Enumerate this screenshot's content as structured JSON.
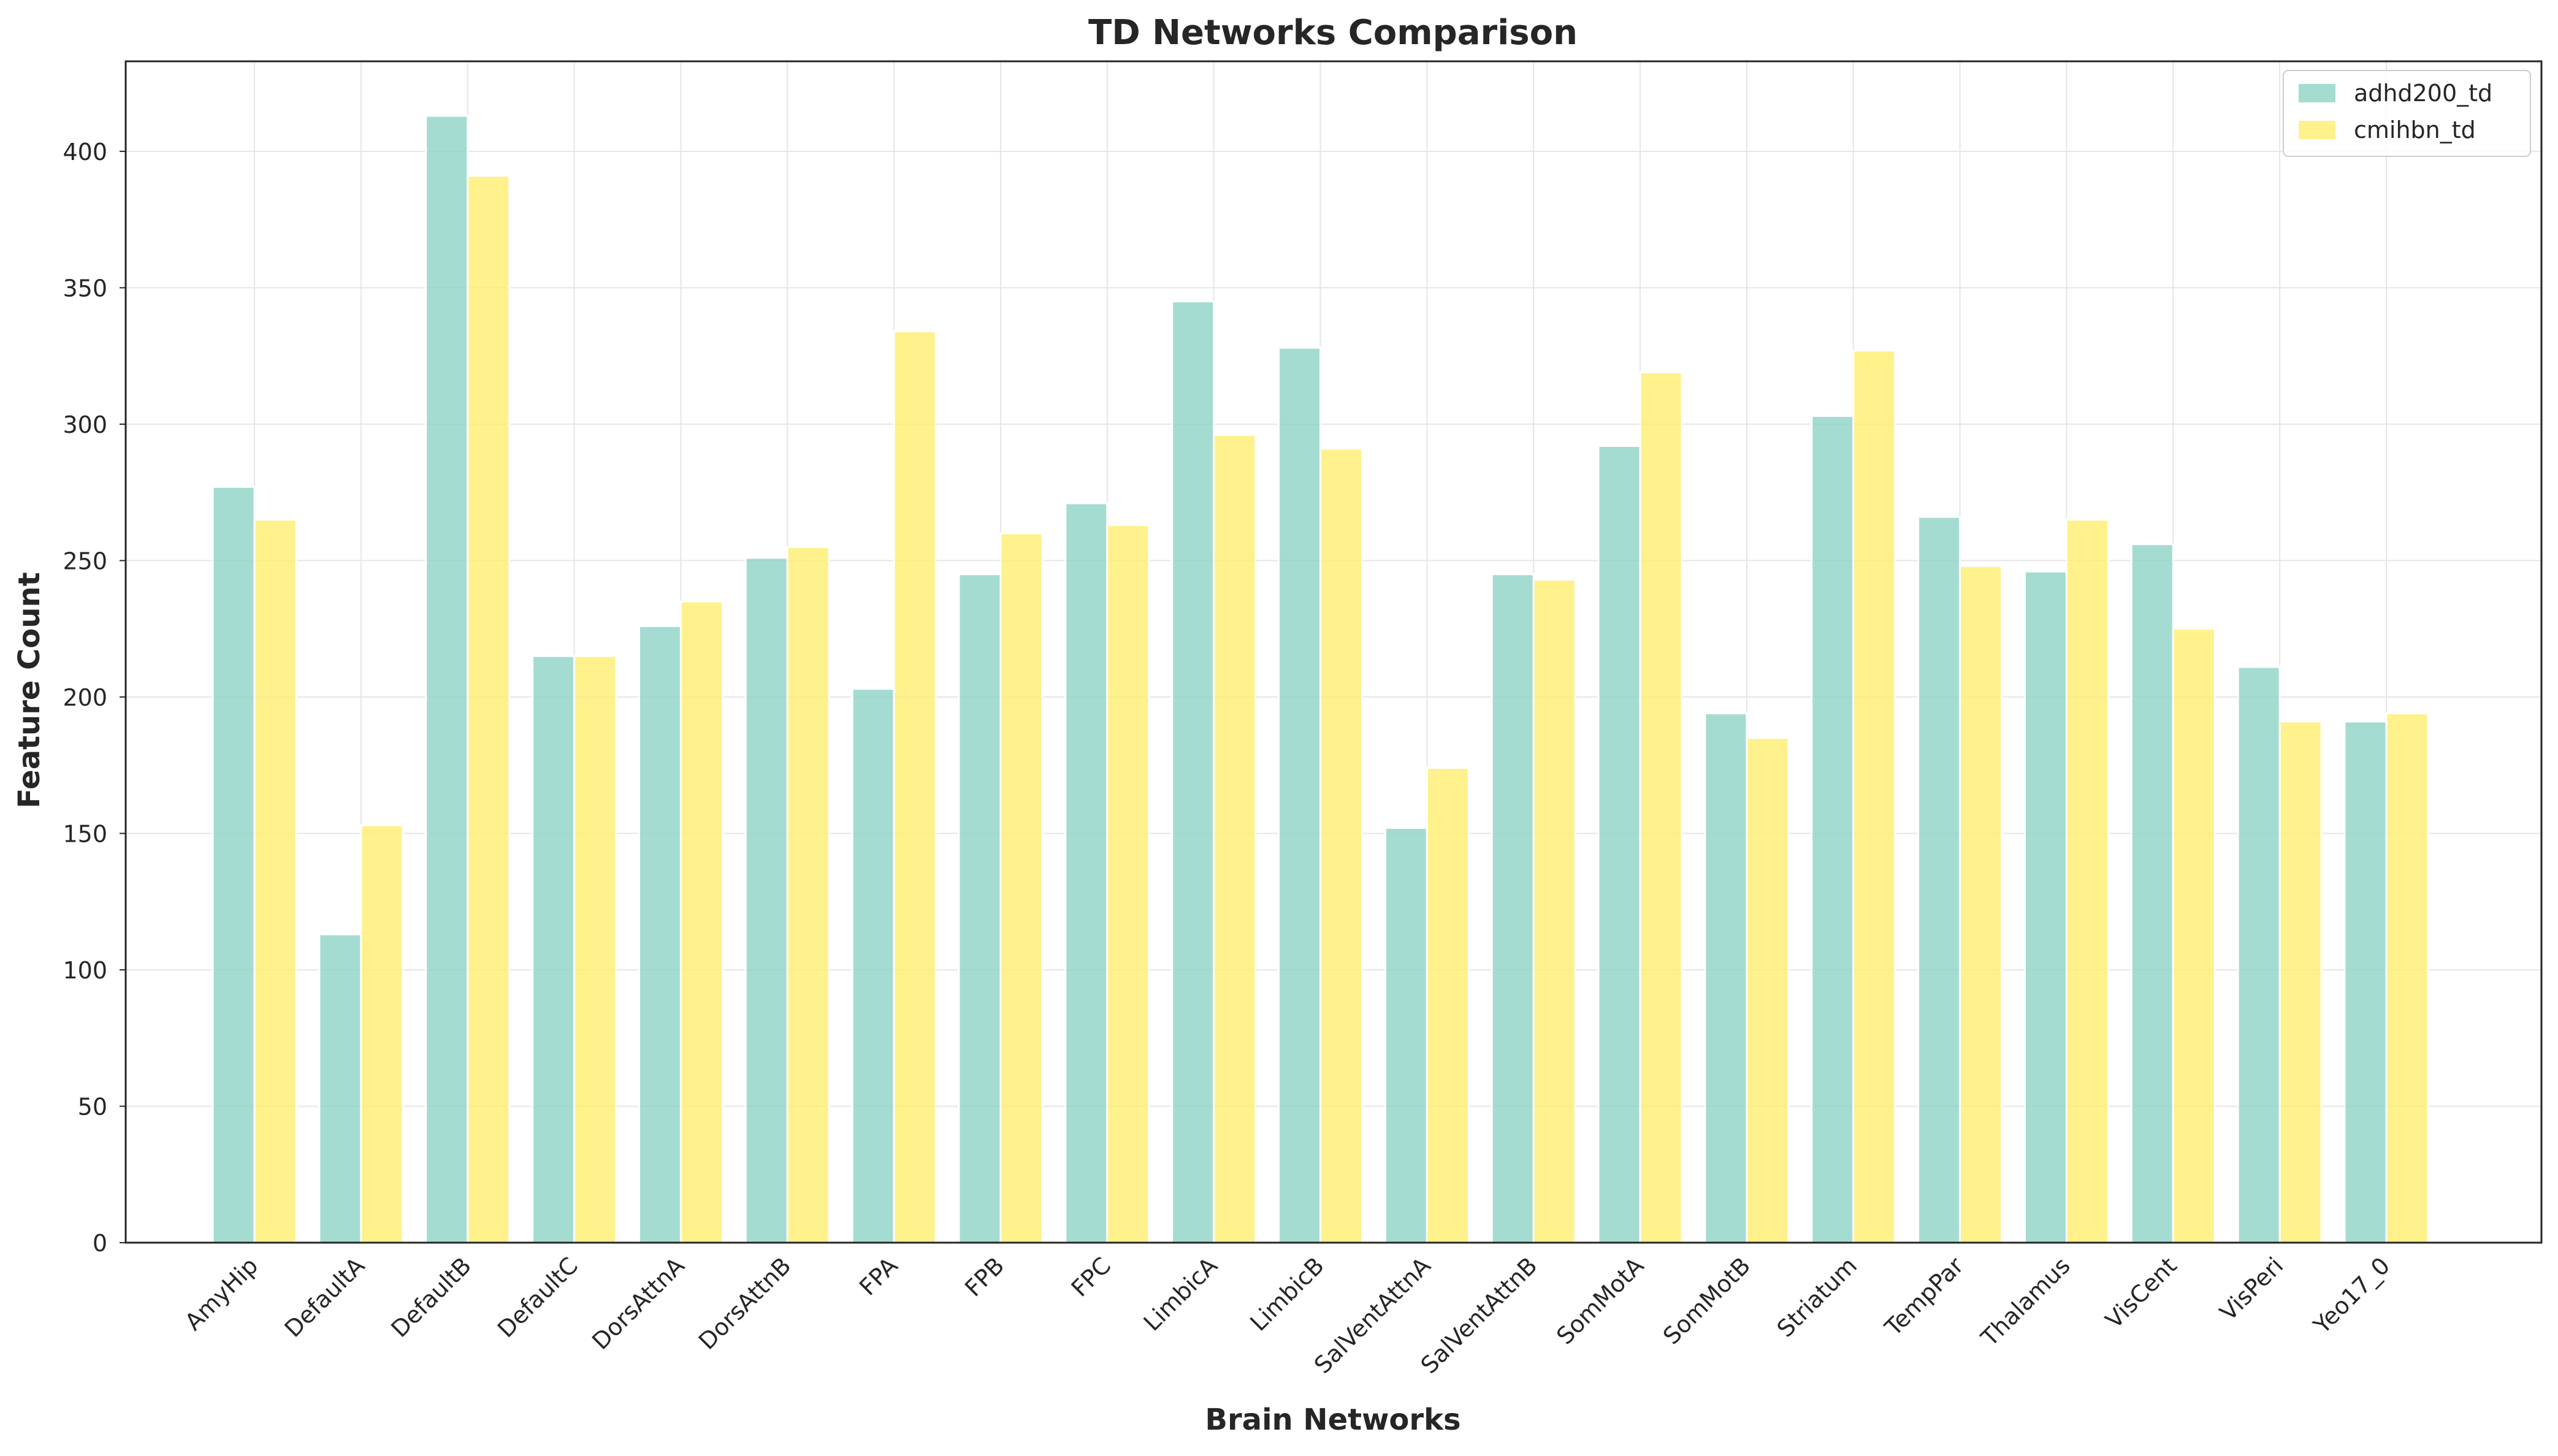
{
  "chart_data": {
    "type": "bar",
    "title": "TD Networks Comparison",
    "xlabel": "Brain Networks",
    "ylabel": "Feature Count",
    "ylim": [
      0,
      433
    ],
    "yticks": [
      0,
      50,
      100,
      150,
      200,
      250,
      300,
      350,
      400
    ],
    "grid": true,
    "legend_position": "top-right",
    "categories": [
      "AmyHip",
      "DefaultA",
      "DefaultB",
      "DefaultC",
      "DorsAttnA",
      "DorsAttnB",
      "FPA",
      "FPB",
      "FPC",
      "LimbicA",
      "LimbicB",
      "SalVentAttnA",
      "SalVentAttnB",
      "SomMotA",
      "SomMotB",
      "Striatum",
      "TempPar",
      "Thalamus",
      "VisCent",
      "VisPeri",
      "Yeo17_0"
    ],
    "series": [
      {
        "name": "adhd200_td",
        "color": "#8dd3c7",
        "values": [
          277,
          113,
          413,
          215,
          226,
          251,
          203,
          245,
          271,
          345,
          328,
          152,
          245,
          292,
          194,
          303,
          266,
          246,
          256,
          211,
          191
        ]
      },
      {
        "name": "cmihbn_td",
        "color": "#ffed6f",
        "values": [
          265,
          153,
          391,
          215,
          235,
          255,
          334,
          260,
          263,
          296,
          291,
          174,
          243,
          319,
          185,
          327,
          248,
          265,
          225,
          191,
          194
        ]
      }
    ]
  }
}
